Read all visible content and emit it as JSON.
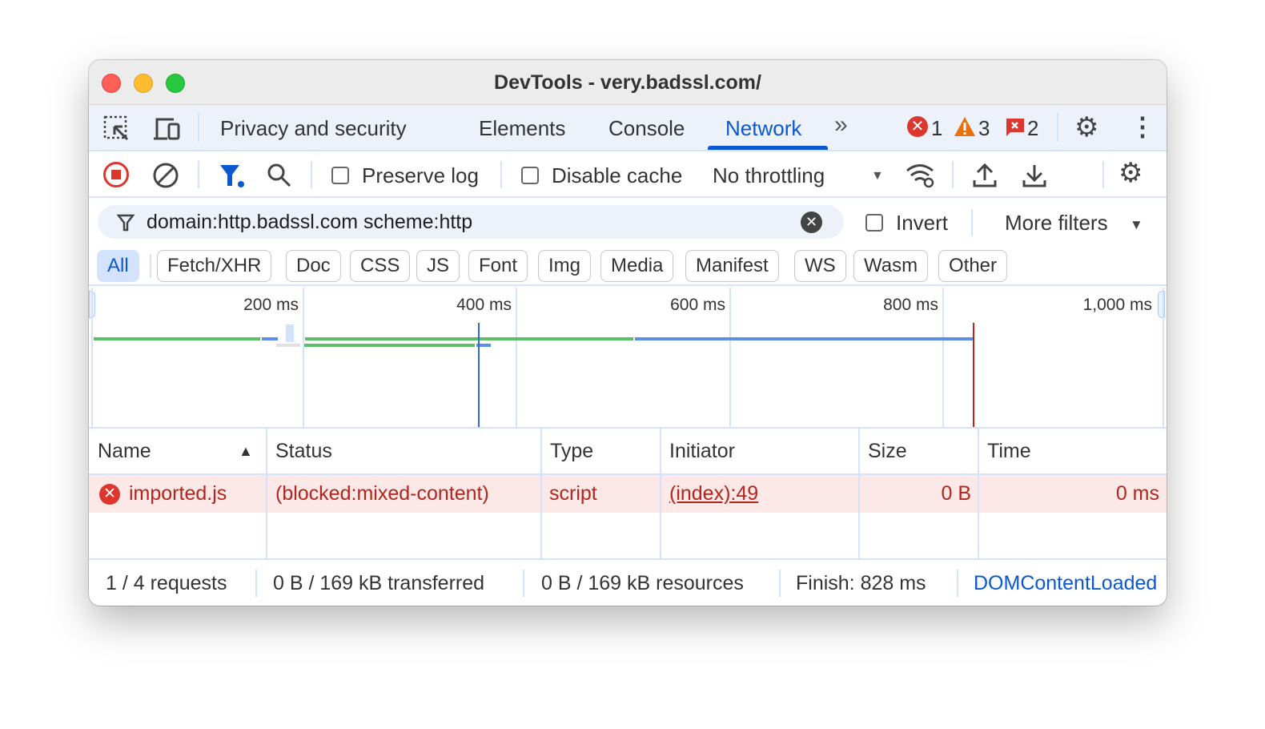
{
  "window": {
    "title": "DevTools - very.badssl.com/"
  },
  "tabs": {
    "items": [
      "Privacy and security",
      "Elements",
      "Console",
      "Network"
    ],
    "active": "Network",
    "more": "»",
    "errors": "1",
    "warnings": "3",
    "issues": "2"
  },
  "toolbar": {
    "preserve_log": "Preserve log",
    "disable_cache": "Disable cache",
    "throttling": "No throttling"
  },
  "filter": {
    "value": "domain:http.badssl.com scheme:http",
    "invert": "Invert",
    "more_filters": "More filters"
  },
  "chips": [
    "All",
    "Fetch/XHR",
    "Doc",
    "CSS",
    "JS",
    "Font",
    "Img",
    "Media",
    "Manifest",
    "WS",
    "Wasm",
    "Other"
  ],
  "overview": {
    "ticks": [
      "200 ms",
      "400 ms",
      "600 ms",
      "800 ms",
      "1,000 ms"
    ],
    "dom_content_loaded_ms": 364,
    "load_ms": 828
  },
  "table": {
    "headers": [
      "Name",
      "Status",
      "Type",
      "Initiator",
      "Size",
      "Time"
    ],
    "rows": [
      {
        "name": "imported.js",
        "status": "(blocked:mixed-content)",
        "type": "script",
        "initiator": "(index):49",
        "size": "0 B",
        "time": "0 ms"
      }
    ]
  },
  "statusbar": {
    "requests": "1 / 4 requests",
    "transferred": "0 B / 169 kB transferred",
    "resources": "0 B / 169 kB resources",
    "finish": "Finish: 828 ms",
    "dcl": "DOMContentLoaded"
  },
  "colors": {
    "accent": "#0b57d0",
    "error": "#dc362e",
    "warning": "#e8710a",
    "dcl": "#3367d6",
    "load": "#c5221f"
  }
}
